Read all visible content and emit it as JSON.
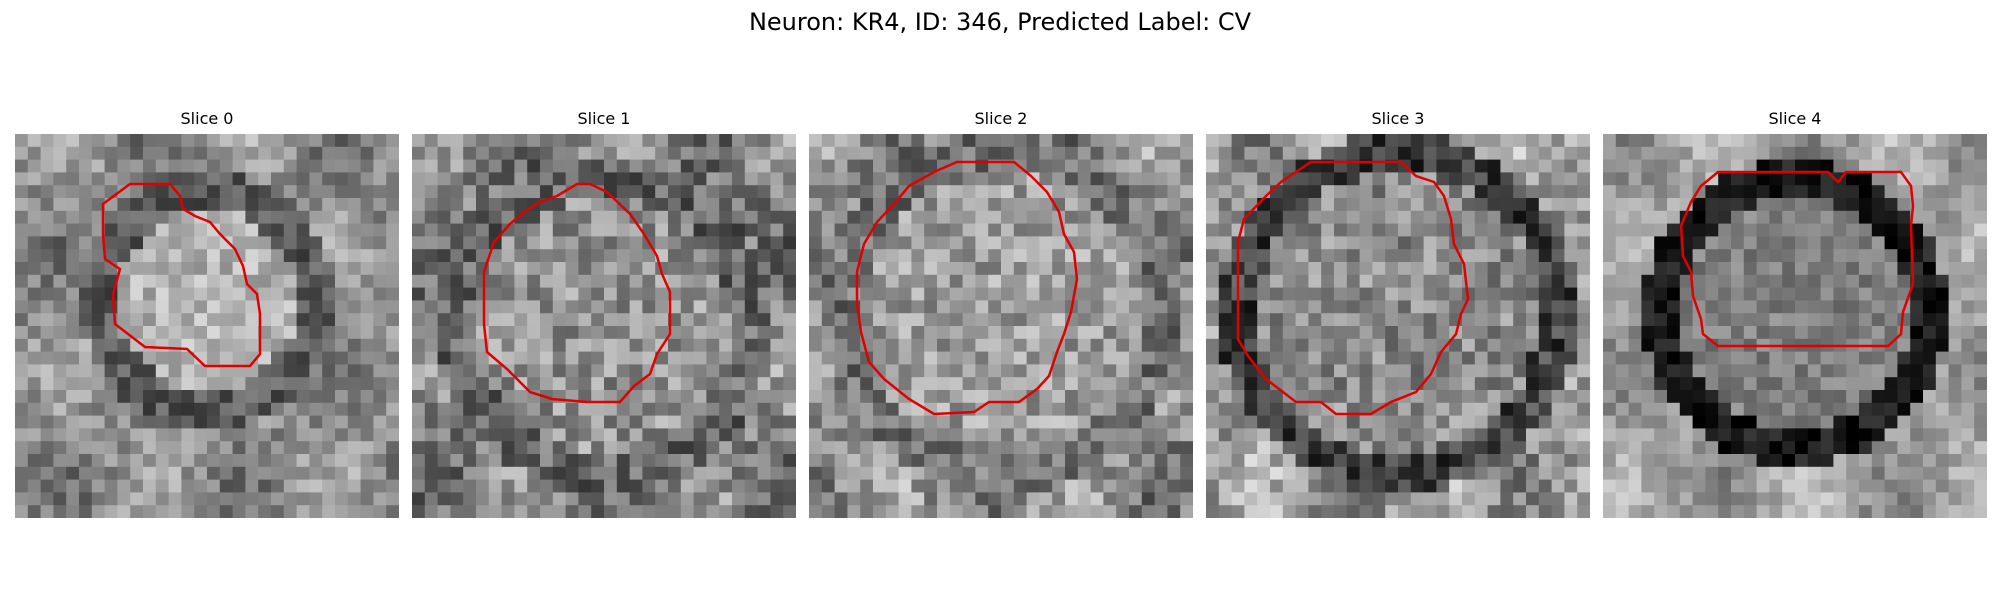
{
  "figure": {
    "title": "Neuron: KR4, ID: 346, Predicted Label: CV"
  },
  "panels": [
    {
      "title": "Slice 0"
    },
    {
      "title": "Slice 1"
    },
    {
      "title": "Slice 2"
    },
    {
      "title": "Slice 3"
    },
    {
      "title": "Slice 4"
    }
  ],
  "contour_color": "#e00000"
}
